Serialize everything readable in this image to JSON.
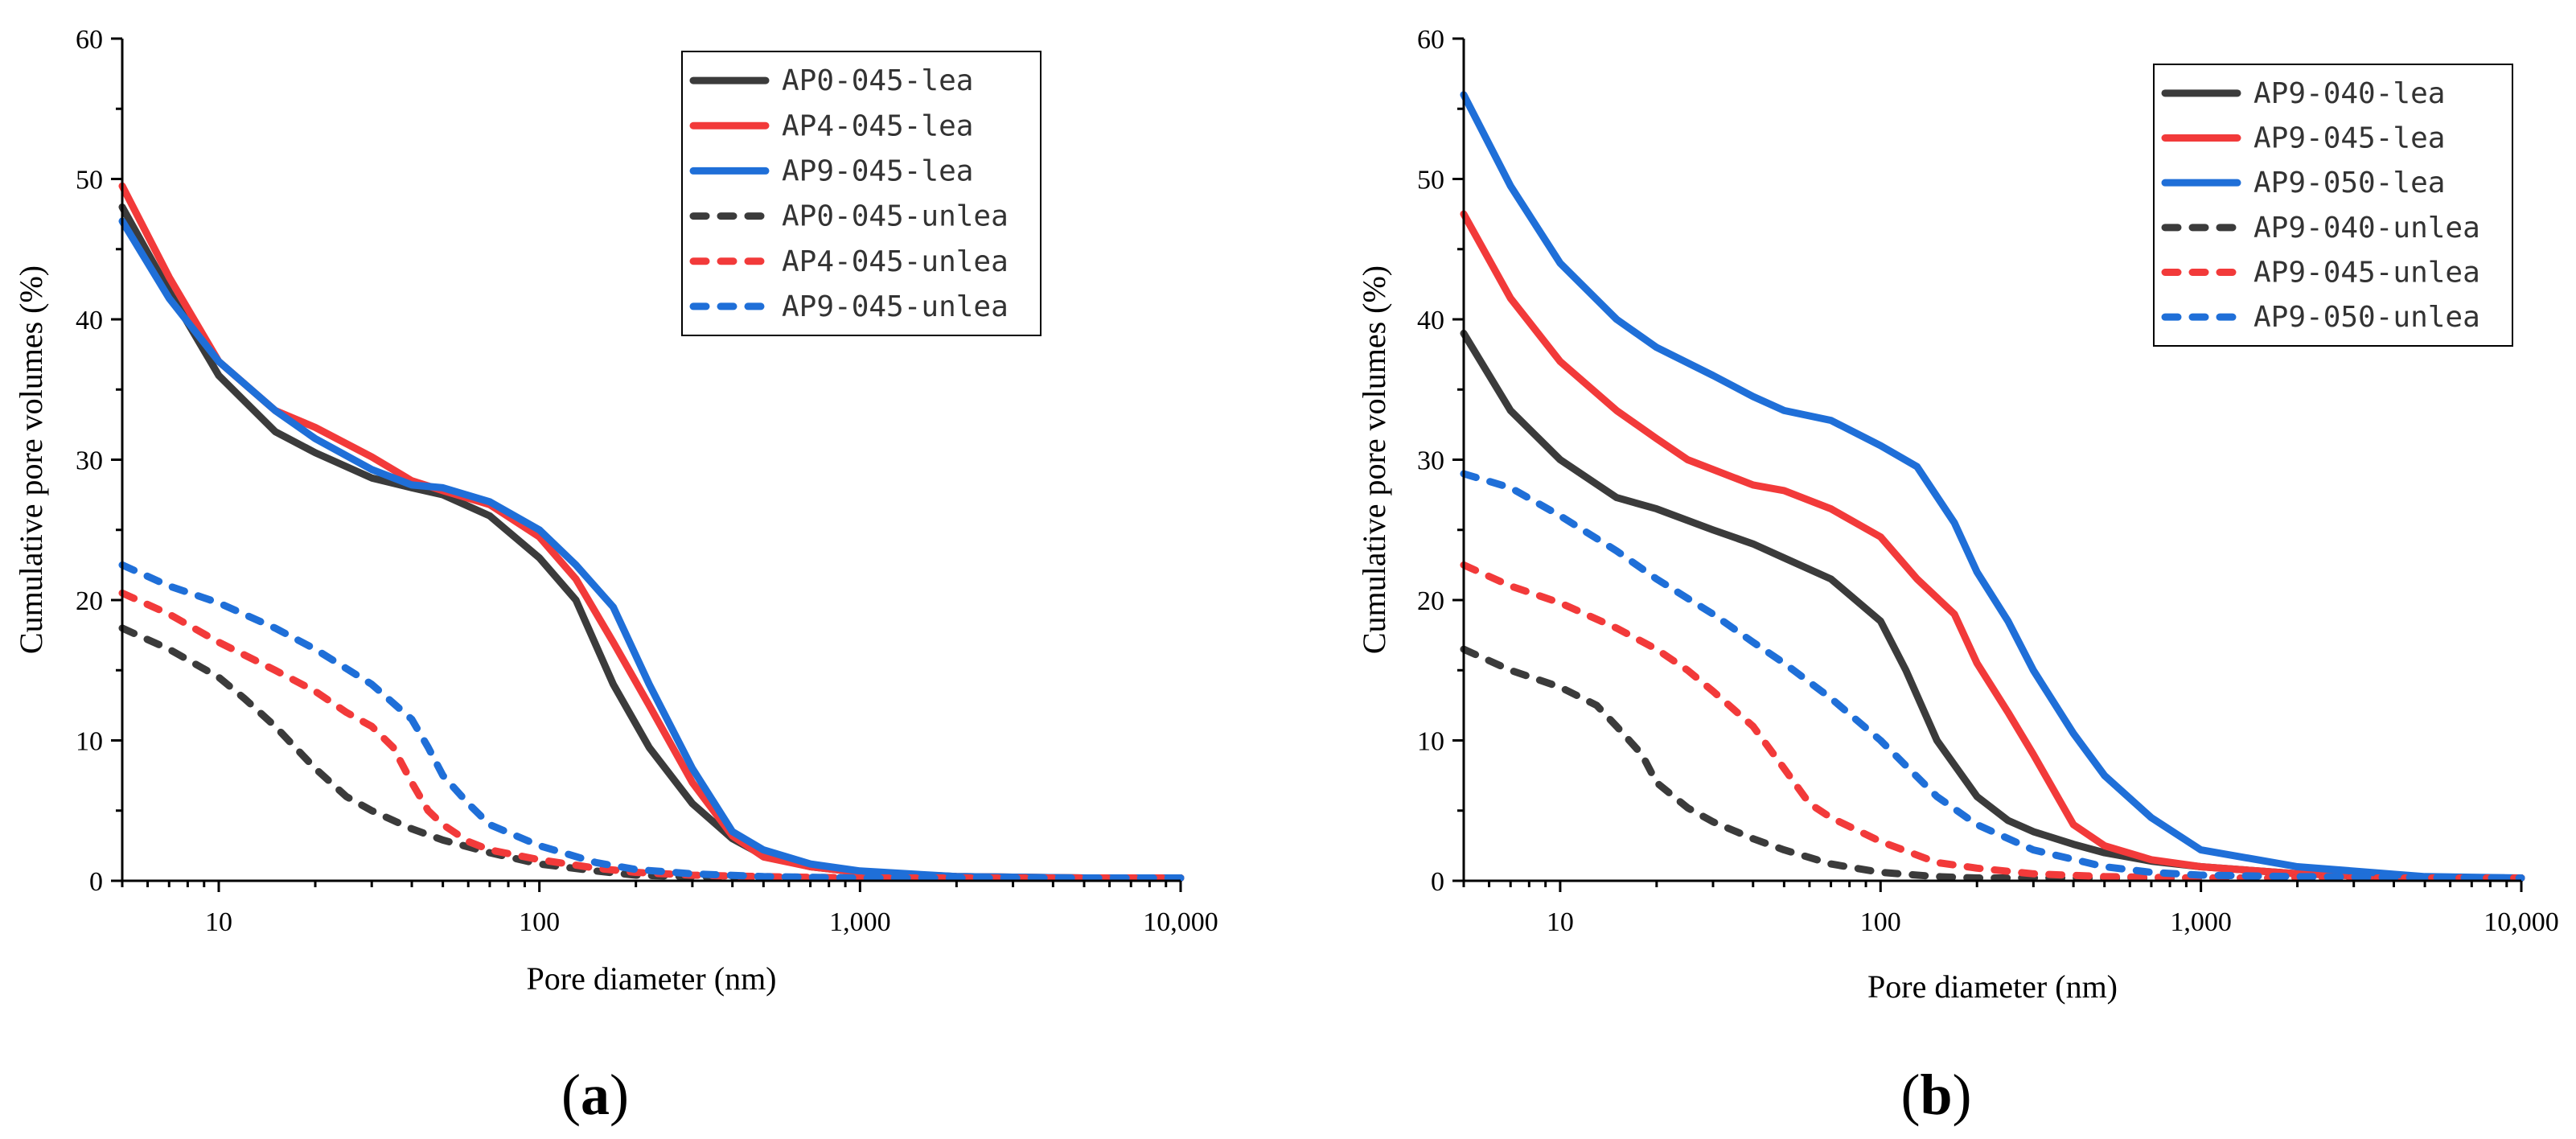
{
  "colors": {
    "black": "#3b3b3b",
    "red": "#f23a3a",
    "blue": "#1f6fd8"
  },
  "chart_data": [
    {
      "type": "line",
      "panel_label": "a",
      "panel_paren_open": "(",
      "panel_paren_close": ")",
      "xlabel": "Pore diameter (nm)",
      "ylabel": "Cumulative pore volumes (%)",
      "xscale": "log",
      "xlim": [
        5,
        10000
      ],
      "ylim": [
        0,
        60
      ],
      "xticks": [
        10,
        100,
        1000,
        10000
      ],
      "xtick_labels": [
        "10",
        "100",
        "1,000",
        "10,000"
      ],
      "yticks": [
        0,
        10,
        20,
        30,
        40,
        50,
        60
      ],
      "ytick_labels": [
        "0",
        "10",
        "20",
        "30",
        "40",
        "50",
        "60"
      ],
      "legend_position": "top-right",
      "series": [
        {
          "name": "AP0-045-lea",
          "color": "#3b3b3b",
          "dash": "solid",
          "x": [
            5,
            7,
            10,
            15,
            20,
            30,
            40,
            50,
            70,
            100,
            130,
            170,
            220,
            300,
            400,
            500,
            700,
            1000,
            2000,
            5000,
            10000
          ],
          "y": [
            48,
            42,
            36,
            32,
            30.5,
            28.7,
            28,
            27.5,
            26,
            23,
            20,
            14,
            9.5,
            5.5,
            3,
            1.8,
            1.0,
            0.6,
            0.3,
            0.2,
            0.2
          ]
        },
        {
          "name": "AP4-045-lea",
          "color": "#f23a3a",
          "dash": "solid",
          "x": [
            5,
            7,
            10,
            15,
            20,
            30,
            40,
            50,
            70,
            100,
            130,
            170,
            220,
            300,
            400,
            500,
            700,
            1000,
            2000,
            5000,
            10000
          ],
          "y": [
            49.5,
            43,
            37,
            33.5,
            32.3,
            30.2,
            28.5,
            27.8,
            26.8,
            24.5,
            21.5,
            17,
            12.5,
            7,
            3.2,
            1.7,
            1.0,
            0.6,
            0.3,
            0.2,
            0.2
          ]
        },
        {
          "name": "AP9-045-lea",
          "color": "#1f6fd8",
          "dash": "solid",
          "x": [
            5,
            7,
            10,
            15,
            20,
            30,
            40,
            50,
            70,
            100,
            130,
            170,
            220,
            300,
            400,
            500,
            700,
            1000,
            2000,
            5000,
            10000
          ],
          "y": [
            47,
            41.5,
            37,
            33.5,
            31.5,
            29.3,
            28.2,
            28,
            27,
            25,
            22.5,
            19.5,
            14,
            8,
            3.5,
            2.2,
            1.2,
            0.7,
            0.3,
            0.2,
            0.2
          ]
        },
        {
          "name": "AP0-045-unlea",
          "color": "#3b3b3b",
          "dash": "dashed",
          "x": [
            5,
            7,
            10,
            12,
            15,
            20,
            25,
            30,
            40,
            50,
            70,
            100,
            150,
            200,
            300,
            500,
            1000,
            10000
          ],
          "y": [
            18,
            16.5,
            14.5,
            13,
            11,
            8,
            6,
            5,
            3.7,
            2.9,
            2,
            1.2,
            0.7,
            0.4,
            0.3,
            0.2,
            0.2,
            0.2
          ]
        },
        {
          "name": "AP4-045-unlea",
          "color": "#f23a3a",
          "dash": "dashed",
          "x": [
            5,
            7,
            10,
            15,
            20,
            25,
            30,
            35,
            40,
            45,
            50,
            60,
            70,
            100,
            150,
            200,
            300,
            500,
            1000,
            10000
          ],
          "y": [
            20.5,
            19,
            17,
            15,
            13.5,
            12,
            11,
            9.5,
            7,
            5,
            4,
            2.8,
            2.2,
            1.5,
            0.9,
            0.6,
            0.4,
            0.3,
            0.2,
            0.2
          ]
        },
        {
          "name": "AP9-045-unlea",
          "color": "#1f6fd8",
          "dash": "dashed",
          "x": [
            5,
            7,
            10,
            15,
            20,
            30,
            40,
            45,
            50,
            60,
            70,
            100,
            150,
            200,
            300,
            500,
            1000,
            10000
          ],
          "y": [
            22.5,
            21,
            19.8,
            18,
            16.5,
            14,
            11.5,
            9.5,
            7.5,
            5.5,
            4,
            2.5,
            1.3,
            0.8,
            0.5,
            0.3,
            0.2,
            0.2
          ]
        }
      ]
    },
    {
      "type": "line",
      "panel_label": "b",
      "panel_paren_open": "(",
      "panel_paren_close": ")",
      "xlabel": "Pore diameter (nm)",
      "ylabel": "Cumulative pore volumes (%)",
      "xscale": "log",
      "xlim": [
        5,
        10000
      ],
      "ylim": [
        0,
        60
      ],
      "xticks": [
        10,
        100,
        1000,
        10000
      ],
      "xtick_labels": [
        "10",
        "100",
        "1,000",
        "10,000"
      ],
      "yticks": [
        0,
        10,
        20,
        30,
        40,
        50,
        60
      ],
      "ytick_labels": [
        "0",
        "10",
        "20",
        "30",
        "40",
        "50",
        "60"
      ],
      "legend_position": "top-right",
      "series": [
        {
          "name": "AP9-040-lea",
          "color": "#3b3b3b",
          "dash": "solid",
          "x": [
            5,
            7,
            10,
            15,
            20,
            30,
            40,
            50,
            70,
            100,
            120,
            150,
            200,
            250,
            300,
            400,
            500,
            700,
            1000,
            2000,
            5000,
            10000
          ],
          "y": [
            39,
            33.5,
            30,
            27.3,
            26.5,
            25,
            24,
            23,
            21.5,
            18.5,
            15,
            10,
            6,
            4.3,
            3.5,
            2.6,
            2.0,
            1.4,
            1.0,
            0.5,
            0.2,
            0.2
          ]
        },
        {
          "name": "AP9-045-lea",
          "color": "#f23a3a",
          "dash": "solid",
          "x": [
            5,
            7,
            10,
            15,
            20,
            25,
            30,
            40,
            50,
            70,
            100,
            130,
            170,
            200,
            250,
            300,
            400,
            500,
            700,
            1000,
            2000,
            5000,
            10000
          ],
          "y": [
            47.5,
            41.5,
            37,
            33.5,
            31.5,
            30,
            29.3,
            28.2,
            27.8,
            26.5,
            24.5,
            21.5,
            19,
            15.5,
            12,
            9,
            4,
            2.5,
            1.5,
            1.0,
            0.5,
            0.2,
            0.2
          ]
        },
        {
          "name": "AP9-050-lea",
          "color": "#1f6fd8",
          "dash": "solid",
          "x": [
            5,
            7,
            10,
            15,
            20,
            30,
            40,
            50,
            70,
            100,
            130,
            170,
            200,
            250,
            300,
            400,
            500,
            700,
            1000,
            2000,
            5000,
            10000
          ],
          "y": [
            56,
            49.5,
            44,
            40,
            38,
            36,
            34.5,
            33.5,
            32.8,
            31,
            29.5,
            25.5,
            22,
            18.5,
            15,
            10.5,
            7.5,
            4.5,
            2.2,
            1.0,
            0.3,
            0.2
          ]
        },
        {
          "name": "AP9-040-unlea",
          "color": "#3b3b3b",
          "dash": "dashed",
          "x": [
            5,
            7,
            10,
            13,
            15,
            18,
            20,
            25,
            30,
            40,
            50,
            70,
            100,
            150,
            200,
            500,
            1000,
            10000
          ],
          "y": [
            16.5,
            15,
            13.8,
            12.5,
            11,
            9,
            7,
            5.2,
            4.2,
            3,
            2.2,
            1.2,
            0.6,
            0.3,
            0.2,
            0.2,
            0.2,
            0.2
          ]
        },
        {
          "name": "AP9-045-unlea",
          "color": "#f23a3a",
          "dash": "dashed",
          "x": [
            5,
            7,
            10,
            15,
            20,
            25,
            30,
            40,
            50,
            60,
            70,
            100,
            150,
            200,
            300,
            500,
            1000,
            10000
          ],
          "y": [
            22.5,
            21,
            19.8,
            18,
            16.5,
            15,
            13.5,
            11,
            8,
            5.5,
            4.5,
            2.8,
            1.3,
            0.9,
            0.5,
            0.3,
            0.2,
            0.2
          ]
        },
        {
          "name": "AP9-050-unlea",
          "color": "#1f6fd8",
          "dash": "dashed",
          "x": [
            5,
            7,
            10,
            15,
            20,
            30,
            40,
            50,
            70,
            100,
            150,
            200,
            300,
            500,
            700,
            1000,
            2000,
            10000
          ],
          "y": [
            29,
            28,
            26,
            23.5,
            21.5,
            19,
            17,
            15.5,
            13,
            10,
            6,
            4,
            2.2,
            1.0,
            0.6,
            0.4,
            0.3,
            0.2
          ]
        }
      ]
    }
  ]
}
